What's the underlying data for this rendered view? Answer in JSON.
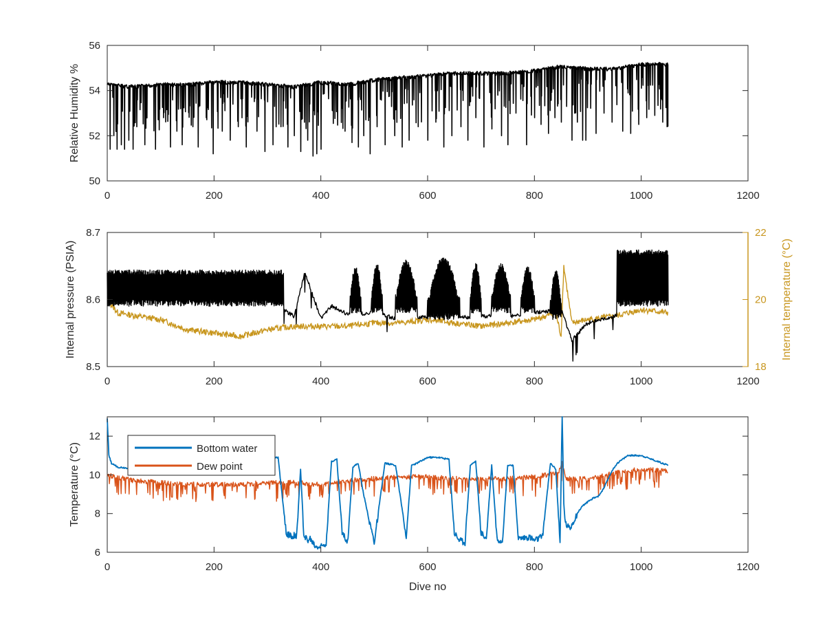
{
  "chart_data": [
    {
      "type": "line",
      "xlim": [
        0,
        1200
      ],
      "ylim": [
        50,
        56
      ],
      "xticks": [
        "0",
        "200",
        "400",
        "600",
        "800",
        "1000",
        "1200"
      ],
      "yticks": [
        "50",
        "52",
        "54",
        "56"
      ],
      "ylabel": "Relative Humidity %",
      "series": [
        {
          "color": "#000000",
          "baseline": 54.3,
          "x": [
            0,
            50,
            100,
            150,
            200,
            250,
            300,
            350,
            400,
            450,
            500,
            550,
            600,
            650,
            700,
            750,
            800,
            850,
            900,
            950,
            1000,
            1050
          ],
          "upper": [
            54.4,
            54.3,
            54.4,
            54.4,
            54.5,
            54.5,
            54.4,
            54.3,
            54.5,
            54.4,
            54.6,
            54.7,
            54.8,
            54.9,
            54.9,
            54.9,
            55.0,
            55.2,
            55.1,
            55.1,
            55.3,
            55.3
          ],
          "dips": [
            [
              5,
              51.4
            ],
            [
              12,
              52.0
            ],
            [
              18,
              51.4
            ],
            [
              26,
              51.6
            ],
            [
              32,
              51.4
            ],
            [
              40,
              51.8
            ],
            [
              48,
              51.4
            ],
            [
              55,
              52.4
            ],
            [
              70,
              51.6
            ],
            [
              90,
              51.4
            ],
            [
              105,
              52.8
            ],
            [
              118,
              51.5
            ],
            [
              130,
              52.2
            ],
            [
              140,
              51.6
            ],
            [
              160,
              52.4
            ],
            [
              170,
              51.5
            ],
            [
              185,
              52.8
            ],
            [
              198,
              51.2
            ],
            [
              215,
              52.2
            ],
            [
              230,
              51.8
            ],
            [
              245,
              52.4
            ],
            [
              260,
              51.5
            ],
            [
              280,
              52.2
            ],
            [
              295,
              51.3
            ],
            [
              310,
              51.6
            ],
            [
              325,
              52.4
            ],
            [
              338,
              51.5
            ],
            [
              350,
              52.0
            ],
            [
              362,
              51.3
            ],
            [
              375,
              51.8
            ],
            [
              385,
              51.1
            ],
            [
              392,
              51.2
            ],
            [
              400,
              51.4
            ],
            [
              445,
              52.2
            ],
            [
              458,
              51.7
            ],
            [
              470,
              51.5
            ],
            [
              480,
              52.0
            ],
            [
              492,
              51.2
            ],
            [
              505,
              52.4
            ],
            [
              520,
              51.6
            ],
            [
              538,
              52.0
            ],
            [
              552,
              51.5
            ],
            [
              565,
              51.8
            ],
            [
              582,
              52.4
            ],
            [
              600,
              51.8
            ],
            [
              615,
              52.6
            ],
            [
              630,
              51.5
            ],
            [
              645,
              52.0
            ],
            [
              662,
              52.4
            ],
            [
              675,
              51.8
            ],
            [
              690,
              52.8
            ],
            [
              705,
              51.5
            ],
            [
              720,
              52.3
            ],
            [
              738,
              52.0
            ],
            [
              750,
              51.6
            ],
            [
              765,
              53.0
            ],
            [
              785,
              51.6
            ],
            [
              800,
              52.8
            ],
            [
              812,
              52.5
            ],
            [
              826,
              52.1
            ],
            [
              838,
              52.8
            ],
            [
              850,
              52.6
            ],
            [
              860,
              53.3
            ],
            [
              870,
              51.8
            ],
            [
              880,
              52.6
            ],
            [
              890,
              51.8
            ],
            [
              896,
              51.8
            ],
            [
              915,
              52.1
            ],
            [
              930,
              53.0
            ],
            [
              945,
              52.6
            ],
            [
              965,
              52.2
            ],
            [
              980,
              52.1
            ],
            [
              995,
              52.5
            ],
            [
              1010,
              52.8
            ],
            [
              1025,
              52.9
            ],
            [
              1040,
              52.6
            ],
            [
              1048,
              52.4
            ]
          ]
        }
      ]
    },
    {
      "type": "line",
      "xlim": [
        0,
        1200
      ],
      "ylim": [
        8.5,
        8.7
      ],
      "y2lim": [
        18,
        22
      ],
      "xticks": [
        "0",
        "200",
        "400",
        "600",
        "800",
        "1000",
        "1200"
      ],
      "yticks": [
        "8.5",
        "8.6",
        "8.7"
      ],
      "y2ticks": [
        "18",
        "20",
        "22"
      ],
      "ylabel": "Internal pressure (PSIA)",
      "y2label": "Internal temperature (°C)",
      "series": [
        {
          "axis": "left",
          "color": "#000000",
          "segments": [
            {
              "x": [
                0,
                330
              ],
              "low": 8.6,
              "high": 8.64
            },
            {
              "x": [
                455,
                475
              ],
              "low": 8.59,
              "high": 8.645
            },
            {
              "x": [
                495,
                515
              ],
              "low": 8.59,
              "high": 8.65
            },
            {
              "x": [
                540,
                580
              ],
              "low": 8.59,
              "high": 8.655
            },
            {
              "x": [
                600,
                660
              ],
              "low": 8.58,
              "high": 8.66
            },
            {
              "x": [
                680,
                700
              ],
              "low": 8.59,
              "high": 8.65
            },
            {
              "x": [
                720,
                755
              ],
              "low": 8.59,
              "high": 8.65
            },
            {
              "x": [
                775,
                800
              ],
              "low": 8.59,
              "high": 8.645
            },
            {
              "x": [
                830,
                850
              ],
              "low": 8.58,
              "high": 8.64
            },
            {
              "x": [
                955,
                1050
              ],
              "low": 8.6,
              "high": 8.67
            }
          ],
          "x": [
            0,
            50,
            100,
            150,
            200,
            250,
            300,
            330,
            350,
            370,
            400,
            420,
            450,
            500,
            550,
            600,
            650,
            700,
            750,
            800,
            850,
            870,
            900,
            950,
            1000,
            1050
          ],
          "y": [
            8.6,
            8.6,
            8.598,
            8.597,
            8.595,
            8.594,
            8.594,
            8.585,
            8.575,
            8.64,
            8.572,
            8.59,
            8.578,
            8.58,
            8.57,
            8.575,
            8.573,
            8.575,
            8.575,
            8.58,
            8.585,
            8.54,
            8.565,
            8.575,
            8.58,
            8.58
          ]
        },
        {
          "axis": "right",
          "color": "#C8961E",
          "x": [
            0,
            20,
            60,
            100,
            150,
            200,
            250,
            300,
            350,
            400,
            450,
            500,
            550,
            600,
            650,
            700,
            750,
            800,
            840,
            850,
            855,
            870,
            900,
            950,
            1000,
            1050
          ],
          "y": [
            20.0,
            19.6,
            19.5,
            19.4,
            19.1,
            19.0,
            18.9,
            19.1,
            19.2,
            19.2,
            19.2,
            19.3,
            19.3,
            19.4,
            19.3,
            19.2,
            19.3,
            19.4,
            19.6,
            18.9,
            21.0,
            19.3,
            19.4,
            19.5,
            19.7,
            19.6
          ]
        }
      ]
    },
    {
      "type": "line",
      "xlim": [
        0,
        1200
      ],
      "ylim": [
        6,
        13
      ],
      "xticks": [
        "0",
        "200",
        "400",
        "600",
        "800",
        "1000",
        "1200"
      ],
      "yticks": [
        "6",
        "8",
        "10",
        "12"
      ],
      "xlabel": "Dive no",
      "ylabel": "Temperature (°C)",
      "legend": "top-left",
      "series": [
        {
          "name": "Bottom water",
          "color": "#0072BD",
          "x": [
            0,
            3,
            8,
            20,
            60,
            120,
            200,
            260,
            320,
            335,
            345,
            355,
            362,
            368,
            375,
            380,
            390,
            400,
            410,
            420,
            430,
            440,
            450,
            460,
            470,
            480,
            500,
            520,
            540,
            560,
            570,
            580,
            600,
            620,
            640,
            650,
            660,
            670,
            680,
            690,
            700,
            710,
            720,
            730,
            740,
            750,
            760,
            770,
            790,
            800,
            815,
            830,
            840,
            848,
            852,
            855,
            858,
            866,
            880,
            890,
            900,
            910,
            920,
            930,
            945,
            955,
            965,
            975,
            1000,
            1030,
            1050
          ],
          "y": [
            12.9,
            11.0,
            10.6,
            10.4,
            10.3,
            10.4,
            10.6,
            10.8,
            10.9,
            7.0,
            6.8,
            6.9,
            10.3,
            7.0,
            6.6,
            6.7,
            6.3,
            6.3,
            6.5,
            10.7,
            10.8,
            7.0,
            6.5,
            10.4,
            10.6,
            9.0,
            6.5,
            10.6,
            10.5,
            6.8,
            10.5,
            10.6,
            10.9,
            10.9,
            10.8,
            7.0,
            6.6,
            6.5,
            10.5,
            10.7,
            7.0,
            6.7,
            10.5,
            6.7,
            6.6,
            10.5,
            10.5,
            6.7,
            6.8,
            6.6,
            6.8,
            10.6,
            10.3,
            6.5,
            13.2,
            8.5,
            7.5,
            7.2,
            8.0,
            8.4,
            8.6,
            8.8,
            8.9,
            9.3,
            10.2,
            10.6,
            10.8,
            11.0,
            11.0,
            10.7,
            10.5
          ]
        },
        {
          "name": "Dew point",
          "color": "#D95319",
          "x": [
            0,
            50,
            100,
            150,
            200,
            250,
            300,
            350,
            400,
            450,
            500,
            550,
            600,
            650,
            700,
            750,
            800,
            845,
            852,
            860,
            900,
            950,
            1000,
            1050
          ],
          "y": [
            10.0,
            9.7,
            9.6,
            9.5,
            9.5,
            9.5,
            9.6,
            9.6,
            9.5,
            9.7,
            9.8,
            9.9,
            9.9,
            9.8,
            9.8,
            9.8,
            9.9,
            10.1,
            10.6,
            9.8,
            9.8,
            10.1,
            10.3,
            10.2
          ]
        }
      ]
    }
  ]
}
